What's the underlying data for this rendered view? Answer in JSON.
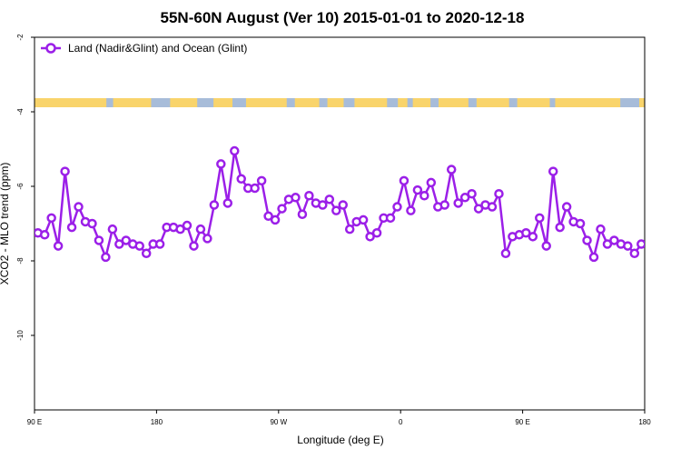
{
  "chart_data": {
    "type": "line",
    "title": "55N-60N August (Ver 10)   2015-01-01 to 2020-12-18",
    "xlabel": "Longitude (deg E)",
    "ylabel": "XCO2 - MLO trend (ppm)",
    "xlim": [
      90,
      540
    ],
    "ylim": [
      -12,
      -2
    ],
    "x_ticks": [
      {
        "value": 90,
        "label": "90 E"
      },
      {
        "value": 180,
        "label": "180"
      },
      {
        "value": 270,
        "label": "90 W"
      },
      {
        "value": 360,
        "label": "0"
      },
      {
        "value": 450,
        "label": "90 E"
      },
      {
        "value": 540,
        "label": "180"
      }
    ],
    "y_ticks": [
      {
        "value": -2,
        "label": "-2"
      },
      {
        "value": -4,
        "label": "-4"
      },
      {
        "value": -6,
        "label": "-6"
      },
      {
        "value": -8,
        "label": "-8"
      },
      {
        "value": -10,
        "label": "-10"
      }
    ],
    "grid": false,
    "legend_position": "top-left",
    "series": [
      {
        "name": "Land (Nadir&Glint) and Ocean (Glint)",
        "color": "#9b1fe8",
        "x": [
          92.5,
          97.5,
          102.5,
          107.5,
          112.5,
          117.5,
          122.5,
          127.5,
          132.5,
          137.5,
          142.5,
          147.5,
          152.5,
          157.5,
          162.5,
          167.5,
          172.5,
          177.5,
          182.5,
          187.5,
          192.5,
          197.5,
          202.5,
          207.5,
          212.5,
          217.5,
          222.5,
          227.5,
          232.5,
          237.5,
          242.5,
          247.5,
          252.5,
          257.5,
          262.5,
          267.5,
          272.5,
          277.5,
          282.5,
          287.5,
          292.5,
          297.5,
          302.5,
          307.5,
          312.5,
          317.5,
          322.5,
          327.5,
          332.5,
          337.5,
          342.5,
          347.5,
          352.5,
          357.5,
          362.5,
          367.5,
          372.5,
          377.5,
          382.5,
          387.5,
          392.5,
          397.5,
          402.5,
          407.5,
          412.5,
          417.5,
          422.5,
          427.5,
          432.5,
          437.5,
          442.5,
          447.5,
          452.5,
          457.5,
          462.5,
          467.5,
          472.5,
          477.5,
          482.5,
          487.5,
          492.5,
          497.5,
          502.5,
          507.5,
          512.5,
          517.5,
          522.5,
          527.5,
          532.5,
          537.5
        ],
        "y": [
          -7.25,
          -7.3,
          -6.85,
          -7.6,
          -5.6,
          -7.1,
          -6.55,
          -6.95,
          -7.0,
          -7.45,
          -7.9,
          -7.15,
          -7.55,
          -7.45,
          -7.55,
          -7.6,
          -7.8,
          -7.55,
          -7.55,
          -7.1,
          -7.1,
          -7.15,
          -7.05,
          -7.6,
          -7.15,
          -7.4,
          -6.5,
          -5.4,
          -6.45,
          -5.05,
          -5.8,
          -6.05,
          -6.05,
          -5.85,
          -6.8,
          -6.9,
          -6.6,
          -6.35,
          -6.3,
          -6.75,
          -6.25,
          -6.45,
          -6.5,
          -6.35,
          -6.65,
          -6.5,
          -7.15,
          -6.95,
          -6.9,
          -7.35,
          -7.25,
          -6.85,
          -6.85,
          -6.55,
          -5.85,
          -6.65,
          -6.1,
          -6.25,
          -5.9,
          -6.55,
          -6.5,
          -5.55,
          -6.45,
          -6.3,
          -6.2,
          -6.6,
          -6.5,
          -6.55,
          -6.2,
          -7.8,
          -7.35,
          -7.3,
          -7.25,
          -7.35,
          -6.85,
          -7.6,
          -5.6,
          -7.1,
          -6.55,
          -6.95,
          -7.0,
          -7.45,
          -7.9,
          -7.15,
          -7.55,
          -7.45,
          -7.55,
          -7.6,
          -7.8,
          -7.55
        ]
      }
    ]
  },
  "map_strip": {
    "ocean_color": "#a7bcd9",
    "land_color": "#f9d46b",
    "land_segments": [
      [
        90,
        143
      ],
      [
        148,
        176
      ],
      [
        190,
        210
      ],
      [
        222,
        236
      ],
      [
        246,
        276
      ],
      [
        282,
        300
      ],
      [
        306,
        318
      ],
      [
        326,
        350
      ],
      [
        358,
        365
      ],
      [
        369,
        382
      ],
      [
        388,
        410
      ],
      [
        416,
        440
      ],
      [
        446,
        470
      ],
      [
        474,
        522
      ],
      [
        536,
        540
      ]
    ]
  }
}
